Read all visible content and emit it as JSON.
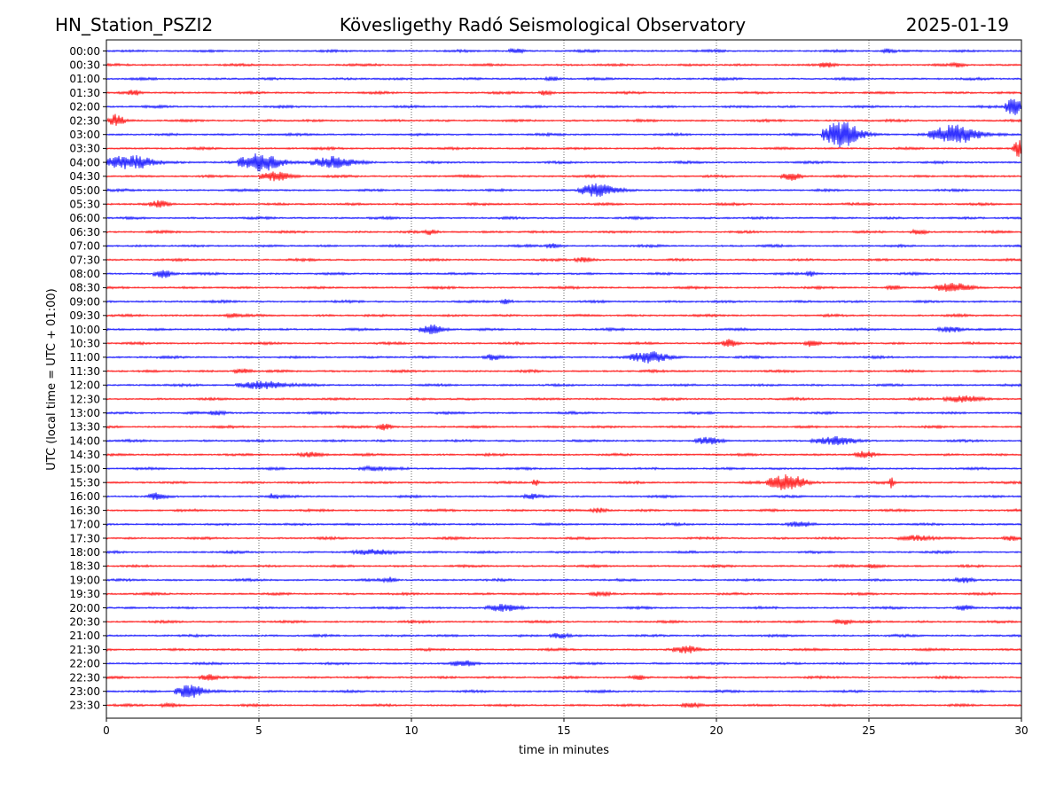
{
  "chart_data": {
    "type": "line",
    "title_left": "HN_Station_PSZI2",
    "title_center": "Kövesligethy Radó Seismological Observatory",
    "title_right": "2025-01-19",
    "xlabel": "time in minutes",
    "ylabel": "UTC (local time = UTC + 01:00)",
    "xlim": [
      0,
      30
    ],
    "xticks": [
      0,
      5,
      10,
      15,
      20,
      25,
      30
    ],
    "grid_x": [
      5,
      10,
      15,
      20,
      25
    ],
    "trace_colors": [
      "#0000ff",
      "#ff0000"
    ],
    "traces": [
      {
        "label": "00:00",
        "events": [
          {
            "t": 13.3,
            "amp": 0.35,
            "dur": 0.5
          },
          {
            "t": 25.5,
            "amp": 0.35,
            "dur": 0.5
          }
        ]
      },
      {
        "label": "00:30",
        "events": [
          {
            "t": 23.5,
            "amp": 0.3,
            "dur": 0.5
          },
          {
            "t": 27.8,
            "amp": 0.3,
            "dur": 0.5
          }
        ]
      },
      {
        "label": "01:00",
        "events": [
          {
            "t": 14.5,
            "amp": 0.3,
            "dur": 0.4
          }
        ]
      },
      {
        "label": "01:30",
        "events": [
          {
            "t": 0.8,
            "amp": 0.35,
            "dur": 0.4
          },
          {
            "t": 14.3,
            "amp": 0.35,
            "dur": 0.4
          }
        ]
      },
      {
        "label": "02:00",
        "events": [
          {
            "t": 29.6,
            "amp": 1.3,
            "dur": 0.6
          }
        ]
      },
      {
        "label": "02:30",
        "events": [
          {
            "t": 0.2,
            "amp": 1.0,
            "dur": 0.5
          }
        ]
      },
      {
        "label": "03:00",
        "events": [
          {
            "t": 23.8,
            "amp": 2.2,
            "dur": 1.2
          },
          {
            "t": 27.4,
            "amp": 1.5,
            "dur": 1.6
          }
        ]
      },
      {
        "label": "03:30",
        "events": [
          {
            "t": 29.8,
            "amp": 1.2,
            "dur": 0.4
          }
        ]
      },
      {
        "label": "04:00",
        "events": [
          {
            "t": 0.4,
            "amp": 1.1,
            "dur": 1.6
          },
          {
            "t": 4.7,
            "amp": 1.4,
            "dur": 1.4
          },
          {
            "t": 7.1,
            "amp": 0.9,
            "dur": 1.4
          }
        ]
      },
      {
        "label": "04:30",
        "events": [
          {
            "t": 5.3,
            "amp": 0.7,
            "dur": 1.0
          },
          {
            "t": 22.3,
            "amp": 0.6,
            "dur": 0.6
          }
        ]
      },
      {
        "label": "05:00",
        "events": [
          {
            "t": 15.8,
            "amp": 1.0,
            "dur": 1.2
          }
        ]
      },
      {
        "label": "05:30",
        "events": [
          {
            "t": 1.6,
            "amp": 0.5,
            "dur": 0.6
          }
        ]
      },
      {
        "label": "06:00",
        "events": []
      },
      {
        "label": "06:30",
        "events": [
          {
            "t": 10.5,
            "amp": 0.35,
            "dur": 0.5
          },
          {
            "t": 26.5,
            "amp": 0.35,
            "dur": 0.5
          }
        ]
      },
      {
        "label": "07:00",
        "events": [
          {
            "t": 14.5,
            "amp": 0.3,
            "dur": 0.5
          }
        ]
      },
      {
        "label": "07:30",
        "events": [
          {
            "t": 15.5,
            "amp": 0.35,
            "dur": 0.6
          }
        ]
      },
      {
        "label": "08:00",
        "events": [
          {
            "t": 1.7,
            "amp": 0.6,
            "dur": 0.6
          },
          {
            "t": 23.0,
            "amp": 0.35,
            "dur": 0.4
          }
        ]
      },
      {
        "label": "08:30",
        "events": [
          {
            "t": 27.5,
            "amp": 0.6,
            "dur": 1.2
          },
          {
            "t": 25.7,
            "amp": 0.35,
            "dur": 0.4
          }
        ]
      },
      {
        "label": "09:00",
        "events": [
          {
            "t": 13.0,
            "amp": 0.35,
            "dur": 0.4
          }
        ]
      },
      {
        "label": "09:30",
        "events": [
          {
            "t": 4.0,
            "amp": 0.3,
            "dur": 0.5
          }
        ]
      },
      {
        "label": "10:00",
        "events": [
          {
            "t": 10.5,
            "amp": 0.7,
            "dur": 0.8
          },
          {
            "t": 27.5,
            "amp": 0.4,
            "dur": 0.8
          }
        ]
      },
      {
        "label": "10:30",
        "events": [
          {
            "t": 20.3,
            "amp": 0.6,
            "dur": 0.5
          },
          {
            "t": 23.0,
            "amp": 0.5,
            "dur": 0.5
          }
        ]
      },
      {
        "label": "11:00",
        "events": [
          {
            "t": 17.5,
            "amp": 0.9,
            "dur": 1.2
          },
          {
            "t": 12.5,
            "amp": 0.35,
            "dur": 0.6
          }
        ]
      },
      {
        "label": "11:30",
        "events": [
          {
            "t": 4.3,
            "amp": 0.35,
            "dur": 0.6
          }
        ]
      },
      {
        "label": "12:00",
        "events": [
          {
            "t": 4.7,
            "amp": 0.6,
            "dur": 1.6
          }
        ]
      },
      {
        "label": "12:30",
        "events": [
          {
            "t": 27.8,
            "amp": 0.5,
            "dur": 1.2
          }
        ]
      },
      {
        "label": "13:00",
        "events": [
          {
            "t": 3.5,
            "amp": 0.3,
            "dur": 0.6
          }
        ]
      },
      {
        "label": "13:30",
        "events": [
          {
            "t": 9.0,
            "amp": 0.45,
            "dur": 0.5
          }
        ]
      },
      {
        "label": "14:00",
        "events": [
          {
            "t": 23.5,
            "amp": 0.55,
            "dur": 1.4
          },
          {
            "t": 19.5,
            "amp": 0.45,
            "dur": 0.8
          }
        ]
      },
      {
        "label": "14:30",
        "events": [
          {
            "t": 24.7,
            "amp": 0.5,
            "dur": 0.6
          },
          {
            "t": 6.5,
            "amp": 0.35,
            "dur": 0.8
          }
        ]
      },
      {
        "label": "15:00",
        "events": [
          {
            "t": 8.5,
            "amp": 0.3,
            "dur": 0.8
          }
        ]
      },
      {
        "label": "15:30",
        "events": [
          {
            "t": 22.0,
            "amp": 1.3,
            "dur": 1.2
          },
          {
            "t": 14.0,
            "amp": 0.6,
            "dur": 0.2
          },
          {
            "t": 25.7,
            "amp": 0.8,
            "dur": 0.15
          }
        ]
      },
      {
        "label": "16:00",
        "events": [
          {
            "t": 1.5,
            "amp": 0.4,
            "dur": 0.6
          },
          {
            "t": 5.4,
            "amp": 0.4,
            "dur": 0.3
          },
          {
            "t": 13.8,
            "amp": 0.4,
            "dur": 0.4
          }
        ]
      },
      {
        "label": "16:30",
        "events": [
          {
            "t": 16.0,
            "amp": 0.3,
            "dur": 0.6
          }
        ]
      },
      {
        "label": "17:00",
        "events": [
          {
            "t": 22.5,
            "amp": 0.25,
            "dur": 0.8
          }
        ]
      },
      {
        "label": "17:30",
        "events": [
          {
            "t": 26.3,
            "amp": 0.35,
            "dur": 1.2
          },
          {
            "t": 29.5,
            "amp": 0.35,
            "dur": 0.5
          }
        ]
      },
      {
        "label": "18:00",
        "events": [
          {
            "t": 8.5,
            "amp": 0.35,
            "dur": 1.4
          }
        ]
      },
      {
        "label": "18:30",
        "events": [
          {
            "t": 25.0,
            "amp": 0.25,
            "dur": 0.6
          }
        ]
      },
      {
        "label": "19:00",
        "events": [
          {
            "t": 9.2,
            "amp": 0.35,
            "dur": 0.4
          },
          {
            "t": 28.0,
            "amp": 0.35,
            "dur": 0.6
          }
        ]
      },
      {
        "label": "19:30",
        "events": [
          {
            "t": 16.0,
            "amp": 0.3,
            "dur": 0.6
          }
        ]
      },
      {
        "label": "20:00",
        "events": [
          {
            "t": 12.7,
            "amp": 0.45,
            "dur": 1.0
          },
          {
            "t": 28.0,
            "amp": 0.35,
            "dur": 0.6
          }
        ]
      },
      {
        "label": "20:30",
        "events": [
          {
            "t": 24.0,
            "amp": 0.4,
            "dur": 0.6
          }
        ]
      },
      {
        "label": "21:00",
        "events": [
          {
            "t": 14.7,
            "amp": 0.35,
            "dur": 0.6
          }
        ]
      },
      {
        "label": "21:30",
        "events": [
          {
            "t": 18.8,
            "amp": 0.5,
            "dur": 0.8
          }
        ]
      },
      {
        "label": "22:00",
        "events": [
          {
            "t": 11.5,
            "amp": 0.35,
            "dur": 0.8
          }
        ]
      },
      {
        "label": "22:30",
        "events": [
          {
            "t": 3.2,
            "amp": 0.45,
            "dur": 0.6
          },
          {
            "t": 17.3,
            "amp": 0.35,
            "dur": 0.5
          }
        ]
      },
      {
        "label": "23:00",
        "events": [
          {
            "t": 2.5,
            "amp": 1.1,
            "dur": 0.9
          }
        ]
      },
      {
        "label": "23:30",
        "events": [
          {
            "t": 1.9,
            "amp": 0.35,
            "dur": 0.6
          },
          {
            "t": 19.0,
            "amp": 0.35,
            "dur": 0.6
          }
        ]
      }
    ]
  }
}
